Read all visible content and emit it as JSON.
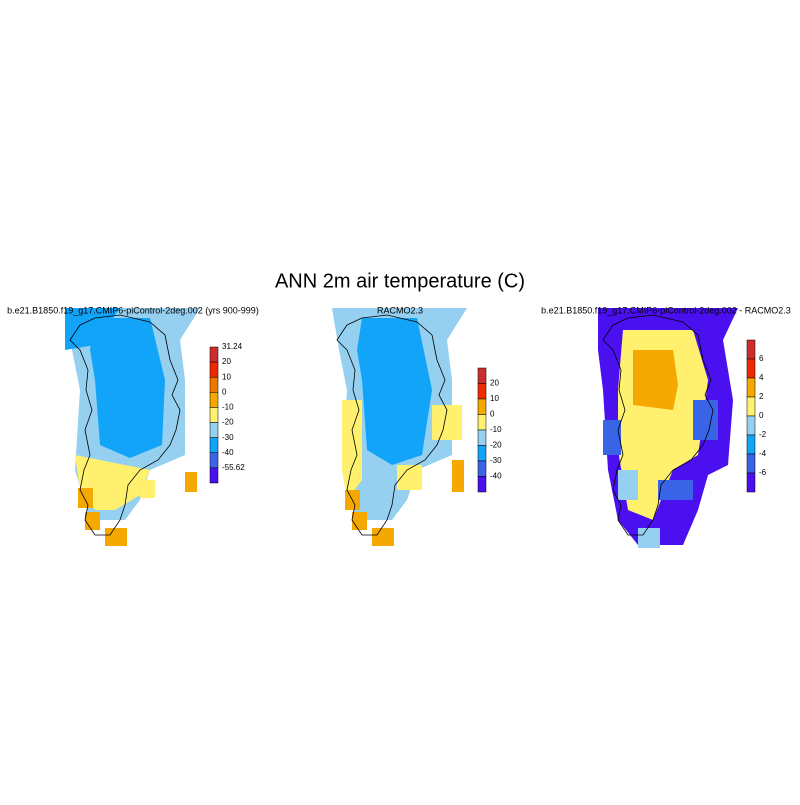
{
  "title": "ANN 2m air temperature (C)",
  "panels": [
    {
      "title": "b.e21.B1850.f19_g17.CMIP6-piControl-2deg.002 (yrs 900-999)",
      "colorbar": {
        "labels": [
          "31.24",
          "20",
          "10",
          "0",
          "-10",
          "-20",
          "-30",
          "-40",
          "-55.62"
        ],
        "colors": [
          "#cc2e2e",
          "#f02a00",
          "#f07800",
          "#f5a800",
          "#fff06e",
          "#96d0f0",
          "#12a4f8",
          "#3a64e6",
          "#4a10f0"
        ],
        "labels_at_ends": true
      }
    },
    {
      "title": "RACMO2.3",
      "colorbar": {
        "labels": [
          "20",
          "10",
          "0",
          "-10",
          "-20",
          "-30",
          "-40"
        ],
        "colors": [
          "#cc2e2e",
          "#f02a00",
          "#f5a800",
          "#fff06e",
          "#96d0f0",
          "#12a4f8",
          "#3a64e6",
          "#4a10f0"
        ],
        "labels_at_ends": false
      }
    },
    {
      "title": "b.e21.B1850.f19_g17.CMIP6-piControl-2deg.002 - RACMO2.3",
      "colorbar": {
        "labels": [
          "6",
          "4",
          "2",
          "0",
          "-2",
          "-4",
          "-6"
        ],
        "colors": [
          "#cc2e2e",
          "#f02a00",
          "#f5a800",
          "#fff06e",
          "#96d0f0",
          "#12a4f8",
          "#3a64e6",
          "#4a10f0"
        ],
        "labels_at_ends": false
      }
    }
  ]
}
